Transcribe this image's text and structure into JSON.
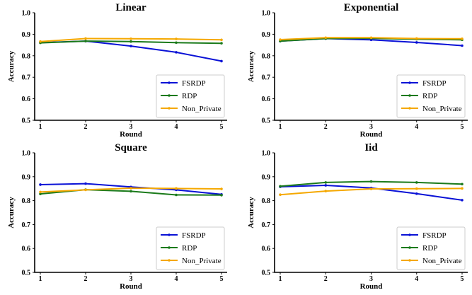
{
  "chart_data": [
    {
      "type": "line",
      "title": "Linear",
      "xlabel": "Round",
      "ylabel": "Accuracy",
      "x": [
        1,
        2,
        3,
        4,
        5
      ],
      "ylim": [
        0.5,
        1.0
      ],
      "yticks": [
        "0.5",
        "0.6",
        "0.7",
        "0.8",
        "0.9",
        "1.0"
      ],
      "xticks": [
        "1",
        "2",
        "3",
        "4",
        "5"
      ],
      "legend": "lower-right",
      "series": [
        {
          "name": "FSRDP",
          "color": "#0a12d6",
          "values": [
            0.861,
            0.868,
            0.845,
            0.816,
            0.775
          ]
        },
        {
          "name": "RDP",
          "color": "#1a7a1a",
          "values": [
            0.86,
            0.868,
            0.866,
            0.861,
            0.858
          ]
        },
        {
          "name": "Non_Private",
          "color": "#f5a800",
          "values": [
            0.866,
            0.88,
            0.879,
            0.878,
            0.874
          ]
        }
      ]
    },
    {
      "type": "line",
      "title": "Exponential",
      "xlabel": "Round",
      "ylabel": "Accuracy",
      "x": [
        1,
        2,
        3,
        4,
        5
      ],
      "ylim": [
        0.5,
        1.0
      ],
      "yticks": [
        "0.5",
        "0.6",
        "0.7",
        "0.8",
        "0.9",
        "1.0"
      ],
      "xticks": [
        "1",
        "2",
        "3",
        "4",
        "5"
      ],
      "legend": "lower-right",
      "series": [
        {
          "name": "FSRDP",
          "color": "#0a12d6",
          "values": [
            0.868,
            0.88,
            0.874,
            0.862,
            0.847
          ]
        },
        {
          "name": "RDP",
          "color": "#1a7a1a",
          "values": [
            0.868,
            0.88,
            0.881,
            0.877,
            0.874
          ]
        },
        {
          "name": "Non_Private",
          "color": "#f5a800",
          "values": [
            0.875,
            0.884,
            0.884,
            0.88,
            0.879
          ]
        }
      ]
    },
    {
      "type": "line",
      "title": "Square",
      "xlabel": "Round",
      "ylabel": "Accuracy",
      "x": [
        1,
        2,
        3,
        4,
        5
      ],
      "ylim": [
        0.5,
        1.0
      ],
      "yticks": [
        "0.5",
        "0.6",
        "0.7",
        "0.8",
        "0.9",
        "1.0"
      ],
      "xticks": [
        "1",
        "2",
        "3",
        "4",
        "5"
      ],
      "legend": "lower-right",
      "series": [
        {
          "name": "FSRDP",
          "color": "#0a12d6",
          "values": [
            0.867,
            0.871,
            0.857,
            0.845,
            0.826
          ]
        },
        {
          "name": "RDP",
          "color": "#1a7a1a",
          "values": [
            0.828,
            0.846,
            0.839,
            0.824,
            0.823
          ]
        },
        {
          "name": "Non_Private",
          "color": "#f5a800",
          "values": [
            0.836,
            0.845,
            0.852,
            0.851,
            0.849
          ]
        }
      ]
    },
    {
      "type": "line",
      "title": "Iid",
      "xlabel": "Round",
      "ylabel": "Accuracy",
      "x": [
        1,
        2,
        3,
        4,
        5
      ],
      "ylim": [
        0.5,
        1.0
      ],
      "yticks": [
        "0.5",
        "0.6",
        "0.7",
        "0.8",
        "0.9",
        "1.0"
      ],
      "xticks": [
        "1",
        "2",
        "3",
        "4",
        "5"
      ],
      "legend": "lower-right",
      "series": [
        {
          "name": "FSRDP",
          "color": "#0a12d6",
          "values": [
            0.858,
            0.864,
            0.853,
            0.829,
            0.802
          ]
        },
        {
          "name": "RDP",
          "color": "#1a7a1a",
          "values": [
            0.86,
            0.876,
            0.88,
            0.876,
            0.869
          ]
        },
        {
          "name": "Non_Private",
          "color": "#f5a800",
          "values": [
            0.825,
            0.84,
            0.849,
            0.85,
            0.851
          ]
        }
      ]
    }
  ]
}
